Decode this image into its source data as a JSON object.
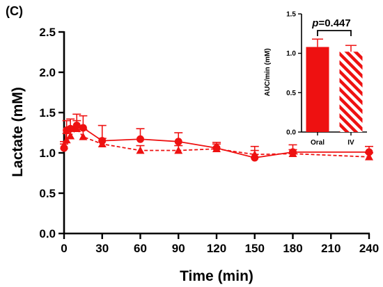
{
  "panel_label": "(C)",
  "colors": {
    "series": "#ee1111",
    "axis": "#000000"
  },
  "chart_data": [
    {
      "type": "line",
      "title": "",
      "xlabel": "Time (min)",
      "ylabel": "Lactate (mM)",
      "xlim": [
        0,
        240
      ],
      "ylim": [
        0,
        2.5
      ],
      "xticks": [
        0,
        30,
        60,
        90,
        120,
        150,
        180,
        210,
        240
      ],
      "yticks": [
        "0.0",
        "0.5",
        "1.0",
        "1.5",
        "2.0",
        "2.5"
      ],
      "grid": false,
      "series": [
        {
          "name": "Oral",
          "marker": "circle",
          "line": "solid",
          "x": [
            0,
            2,
            5,
            10,
            15,
            30,
            60,
            90,
            120,
            150,
            180,
            240
          ],
          "y": [
            1.06,
            1.28,
            1.3,
            1.34,
            1.31,
            1.15,
            1.17,
            1.14,
            1.06,
            0.94,
            1.01,
            1.01
          ],
          "err": [
            0.05,
            0.12,
            0.12,
            0.14,
            0.15,
            0.19,
            0.13,
            0.11,
            0.07,
            0.14,
            0.09,
            0.07
          ]
        },
        {
          "name": "IV",
          "marker": "triangle",
          "line": "dashed",
          "x": [
            0,
            2,
            5,
            10,
            15,
            30,
            60,
            90,
            120,
            150,
            180,
            240
          ],
          "y": [
            1.09,
            1.16,
            1.21,
            1.3,
            1.2,
            1.11,
            1.03,
            1.03,
            1.05,
            0.98,
            0.99,
            0.95
          ],
          "err": [
            0.05,
            0.08,
            0.09,
            0.1,
            0.09,
            0.07,
            0.06,
            0.06,
            0.06,
            0.05,
            0.05,
            0.05
          ]
        }
      ]
    },
    {
      "type": "bar",
      "title": "",
      "xlabel": "",
      "ylabel": "AUC/min (mM)",
      "ylim": [
        0,
        1.5
      ],
      "yticks": [
        "0.0",
        "0.5",
        "1.0",
        "1.5"
      ],
      "categories": [
        "Oral",
        "IV"
      ],
      "values": [
        1.08,
        1.02
      ],
      "err": [
        0.1,
        0.08
      ],
      "patterns": [
        "solid",
        "hatched"
      ],
      "annotation": "p=0.447"
    }
  ]
}
